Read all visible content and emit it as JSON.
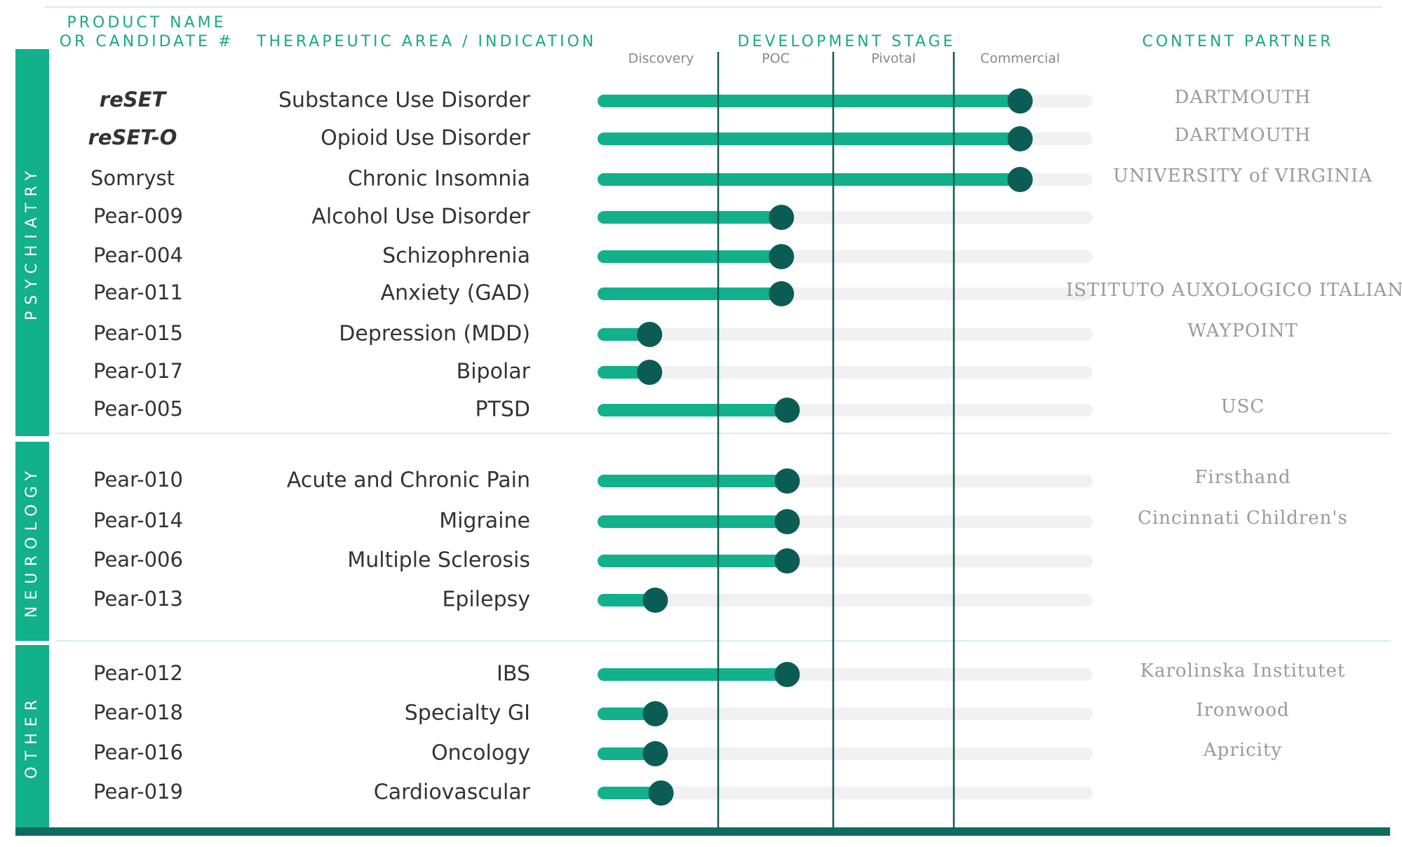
{
  "chart_data": {
    "type": "pipeline",
    "product_header": [
      "PRODUCT NAME",
      "OR CANDIDATE #"
    ],
    "indication_header": "THERAPEUTIC AREA / INDICATION",
    "stage_header": "DEVELOPMENT STAGE",
    "partner_header": "CONTENT PARTNER",
    "stages": [
      "Discovery",
      "POC",
      "Pivotal",
      "Commercial"
    ],
    "xlim": [
      0,
      4
    ],
    "bar_color": "#12b08b",
    "dot_color": "#0b5c55",
    "track_color": "#f1f1f1",
    "groups": [
      {
        "name": "PSYCHIATRY",
        "rows": [
          {
            "product": "reSET",
            "indication": "Substance Use Disorder",
            "partner": "DARTMOUTH",
            "value": 3.5
          },
          {
            "product": "reSET-O",
            "indication": "Opioid Use Disorder",
            "partner": "DARTMOUTH",
            "value": 3.5
          },
          {
            "product": "Somryst",
            "indication": "Chronic Insomnia",
            "partner": "UNIVERSITY of VIRGINIA",
            "value": 3.5
          },
          {
            "product": "Pear-009",
            "indication": "Alcohol Use Disorder",
            "value": 1.55
          },
          {
            "product": "Pear-004",
            "indication": "Schizophrenia",
            "value": 1.55
          },
          {
            "product": "Pear-011",
            "indication": "Anxiety (GAD)",
            "partner": "ISTITUTO AUXOLOGICO ITALIANO",
            "value": 1.55
          },
          {
            "product": "Pear-015",
            "indication": "Depression (MDD)",
            "partner": "WAYPOINT",
            "value": 0.4
          },
          {
            "product": "Pear-017",
            "indication": "Bipolar",
            "value": 0.4
          },
          {
            "product": "Pear-005",
            "indication": "PTSD",
            "partner": "USC",
            "value": 1.6
          }
        ]
      },
      {
        "name": "NEUROLOGY",
        "rows": [
          {
            "product": "Pear-010",
            "indication": "Acute and Chronic Pain",
            "partner": "Firsthand",
            "value": 1.6
          },
          {
            "product": "Pear-014",
            "indication": "Migraine",
            "partner": "Cincinnati Children's",
            "value": 1.6
          },
          {
            "product": "Pear-006",
            "indication": "Multiple Sclerosis",
            "value": 1.6
          },
          {
            "product": "Pear-013",
            "indication": "Epilepsy",
            "value": 0.45
          }
        ]
      },
      {
        "name": "OTHER",
        "rows": [
          {
            "product": "Pear-012",
            "indication": "IBS",
            "partner": "Karolinska Institutet",
            "value": 1.6
          },
          {
            "product": "Pear-018",
            "indication": "Specialty GI",
            "partner": "Ironwood",
            "value": 0.45
          },
          {
            "product": "Pear-016",
            "indication": "Oncology",
            "partner": "Apricity",
            "value": 0.45
          },
          {
            "product": "Pear-019",
            "indication": "Cardiovascular",
            "value": 0.5
          }
        ]
      }
    ]
  }
}
